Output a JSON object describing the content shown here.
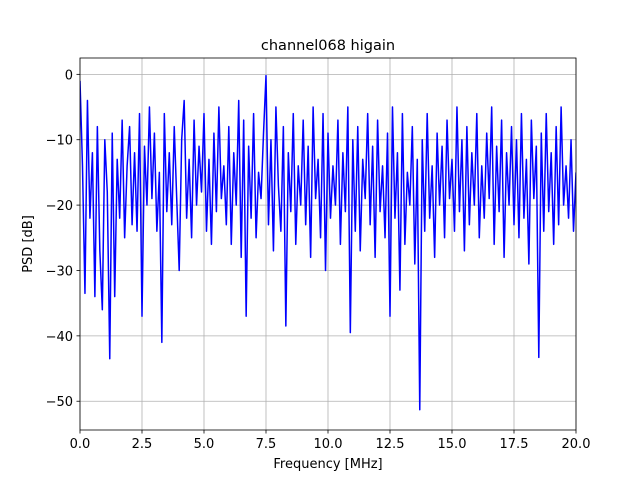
{
  "chart_data": {
    "type": "line",
    "title": "channel068 higain",
    "xlabel": "Frequency [MHz]",
    "ylabel": "PSD [dB]",
    "x": [
      0,
      0.1,
      0.2,
      0.3,
      0.4,
      0.5,
      0.6,
      0.7,
      0.8,
      0.9,
      1,
      1.1,
      1.2,
      1.3,
      1.4,
      1.5,
      1.6,
      1.7,
      1.8,
      1.9,
      2,
      2.1,
      2.2,
      2.3,
      2.4,
      2.5,
      2.6,
      2.7,
      2.8,
      2.9,
      3,
      3.1,
      3.2,
      3.3,
      3.4,
      3.5,
      3.6,
      3.7,
      3.8,
      3.9,
      4,
      4.1,
      4.2,
      4.3,
      4.4,
      4.5,
      4.6,
      4.7,
      4.8,
      4.9,
      5,
      5.1,
      5.2,
      5.3,
      5.4,
      5.5,
      5.6,
      5.7,
      5.8,
      5.9,
      6,
      6.1,
      6.2,
      6.3,
      6.4,
      6.5,
      6.6,
      6.7,
      6.8,
      6.9,
      7,
      7.1,
      7.2,
      7.3,
      7.4,
      7.5,
      7.6,
      7.7,
      7.8,
      7.9,
      8,
      8.1,
      8.2,
      8.3,
      8.4,
      8.5,
      8.6,
      8.7,
      8.8,
      8.9,
      9,
      9.1,
      9.2,
      9.3,
      9.4,
      9.5,
      9.6,
      9.7,
      9.8,
      9.9,
      10,
      10.1,
      10.2,
      10.3,
      10.4,
      10.5,
      10.6,
      10.7,
      10.8,
      10.9,
      11,
      11.1,
      11.2,
      11.3,
      11.4,
      11.5,
      11.6,
      11.7,
      11.8,
      11.9,
      12,
      12.1,
      12.2,
      12.3,
      12.4,
      12.5,
      12.6,
      12.7,
      12.8,
      12.9,
      13,
      13.1,
      13.2,
      13.3,
      13.4,
      13.5,
      13.6,
      13.7,
      13.8,
      13.9,
      14,
      14.1,
      14.2,
      14.3,
      14.4,
      14.5,
      14.6,
      14.7,
      14.8,
      14.9,
      15,
      15.1,
      15.2,
      15.3,
      15.4,
      15.5,
      15.6,
      15.7,
      15.8,
      15.9,
      16,
      16.1,
      16.2,
      16.3,
      16.4,
      16.5,
      16.6,
      16.7,
      16.8,
      16.9,
      17,
      17.1,
      17.2,
      17.3,
      17.4,
      17.5,
      17.6,
      17.7,
      17.8,
      17.9,
      18,
      18.1,
      18.2,
      18.3,
      18.4,
      18.5,
      18.6,
      18.7,
      18.8,
      18.9,
      19,
      19.1,
      19.2,
      19.3,
      19.4,
      19.5,
      19.6,
      19.7,
      19.8,
      19.9,
      20
    ],
    "values": [
      -1,
      -14,
      -33.5,
      -4,
      -22,
      -12,
      -34,
      -8,
      -27,
      -36,
      -10,
      -18,
      -43.5,
      -9,
      -34,
      -13,
      -22,
      -7,
      -25,
      -14,
      -8,
      -23,
      -12,
      -24,
      -6,
      -37,
      -11,
      -20,
      -5,
      -19,
      -9,
      -24,
      -15,
      -41,
      -6,
      -21,
      -12,
      -23,
      -8,
      -19,
      -30,
      -10,
      -4,
      -22,
      -13,
      -25,
      -7,
      -20,
      -11,
      -18,
      -6,
      -24,
      -13,
      -26,
      -9,
      -21,
      -5,
      -19,
      -14,
      -23,
      -8,
      -26,
      -12,
      -20,
      -4,
      -28,
      -7,
      -37,
      -11,
      -22,
      -6,
      -25,
      -15,
      -19,
      -9,
      -0.2,
      -23,
      -10,
      -27,
      -5,
      -17,
      -24,
      -8,
      -38.5,
      -12,
      -21,
      -6,
      -26,
      -14,
      -20,
      -7,
      -23,
      -11,
      -28,
      -5,
      -19,
      -13,
      -25,
      -6,
      -30,
      -9,
      -22,
      -14,
      -20,
      -7,
      -26,
      -12,
      -21,
      -5,
      -39.5,
      -10,
      -24,
      -8,
      -27,
      -13,
      -19,
      -6,
      -23,
      -11,
      -28,
      -7,
      -21,
      -14,
      -25,
      -9,
      -37,
      -5,
      -22,
      -12,
      -33,
      -6,
      -26,
      -15,
      -20,
      -8,
      -29,
      -13,
      -51.3,
      -10,
      -24,
      -6,
      -22,
      -14,
      -28,
      -9,
      -20,
      -11,
      -25,
      -7,
      -19,
      -13,
      -24,
      -5,
      -21,
      -10,
      -27,
      -8,
      -23,
      -12,
      -20,
      -6,
      -25,
      -14,
      -22,
      -9,
      -19,
      -5,
      -26,
      -11,
      -21,
      -7,
      -28,
      -12,
      -20,
      -8,
      -23,
      -10,
      -25,
      -6,
      -22,
      -13,
      -29,
      -7,
      -19,
      -11,
      -43.3,
      -9,
      -24,
      -6,
      -21,
      -12,
      -26,
      -8,
      -23,
      -5,
      -20,
      -14,
      -22,
      -10,
      -24,
      -15
    ],
    "color": "#0000ff",
    "xlim": [
      0,
      20
    ],
    "ylim": [
      -54.4,
      2.5
    ],
    "xticks": [
      {
        "value": 0,
        "label": "0.0"
      },
      2.5,
      {
        "value": 5,
        "label": "5.0"
      },
      7.5,
      {
        "value": 10,
        "label": "10.0"
      },
      12.5,
      {
        "value": 15,
        "label": "15.0"
      },
      17.5,
      {
        "value": 20,
        "label": "20.0"
      }
    ],
    "yticks": [
      0,
      {
        "value": -10,
        "label": "−10"
      },
      {
        "value": -20,
        "label": "−20"
      },
      {
        "value": -30,
        "label": "−30"
      },
      {
        "value": -40,
        "label": "−40"
      },
      {
        "value": -50,
        "label": "−50"
      }
    ],
    "grid": true
  }
}
